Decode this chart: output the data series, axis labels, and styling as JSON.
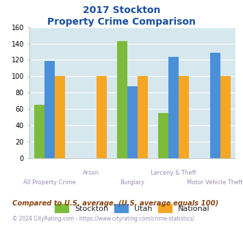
{
  "title_line1": "2017 Stockton",
  "title_line2": "Property Crime Comparison",
  "categories": [
    "All Property Crime",
    "Arson",
    "Burglary",
    "Larceny & Theft",
    "Motor Vehicle Theft"
  ],
  "series": {
    "Stockton": [
      65,
      null,
      143,
      55,
      null
    ],
    "Utah": [
      119,
      null,
      88,
      124,
      129
    ],
    "National": [
      100,
      100,
      100,
      100,
      100
    ]
  },
  "colors": {
    "Stockton": "#7CBB3C",
    "Utah": "#4A90D9",
    "National": "#F5A623"
  },
  "ylim": [
    0,
    160
  ],
  "yticks": [
    0,
    20,
    40,
    60,
    80,
    100,
    120,
    140,
    160
  ],
  "background_color": "#D6E8EE",
  "title_color": "#1A4FA0",
  "xlabel_color": "#9B8BB4",
  "bottom_xlabels": [
    [
      "All Property Crime",
      0
    ],
    [
      "Burglary",
      2
    ],
    [
      "Motor Vehicle Theft",
      4
    ]
  ],
  "top_xlabels": [
    [
      "Arson",
      1
    ],
    [
      "Larceny & Theft",
      3
    ]
  ],
  "footnote1": "Compared to U.S. average. (U.S. average equals 100)",
  "footnote2": "© 2024 CityRating.com - https://www.cityrating.com/crime-statistics/",
  "footnote1_color": "#8B4513",
  "footnote2_color": "#9B8BB4"
}
